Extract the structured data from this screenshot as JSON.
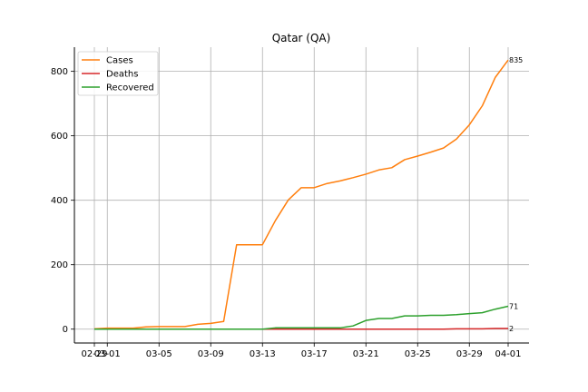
{
  "chart_data": {
    "type": "line",
    "title": "Qatar (QA)",
    "xlabel": "",
    "ylabel": "",
    "grid": true,
    "legend_position": "top-left",
    "x_tick_labels": [
      "02-29",
      "03-01",
      "03-05",
      "03-09",
      "03-13",
      "03-17",
      "03-21",
      "03-25",
      "03-29",
      "04-01"
    ],
    "y_ticks": [
      0,
      200,
      400,
      600,
      800
    ],
    "ylim": [
      -43,
      875
    ],
    "x": [
      "02-29",
      "03-01",
      "03-02",
      "03-03",
      "03-04",
      "03-05",
      "03-06",
      "03-07",
      "03-08",
      "03-09",
      "03-10",
      "03-11",
      "03-12",
      "03-13",
      "03-14",
      "03-15",
      "03-16",
      "03-17",
      "03-18",
      "03-19",
      "03-20",
      "03-21",
      "03-22",
      "03-23",
      "03-24",
      "03-25",
      "03-26",
      "03-27",
      "03-28",
      "03-29",
      "03-30",
      "03-31",
      "04-01"
    ],
    "series": [
      {
        "name": "Cases",
        "color": "#ff7f0e",
        "values": [
          1,
          3,
          3,
          3,
          7,
          8,
          8,
          8,
          15,
          18,
          24,
          262,
          262,
          262,
          337,
          401,
          439,
          439,
          452,
          460,
          470,
          481,
          494,
          501,
          526,
          537,
          549,
          562,
          590,
          634,
          693,
          781,
          835
        ],
        "end_label": "835"
      },
      {
        "name": "Deaths",
        "color": "#d62728",
        "values": [
          0,
          0,
          0,
          0,
          0,
          0,
          0,
          0,
          0,
          0,
          0,
          0,
          0,
          0,
          0,
          0,
          0,
          0,
          0,
          0,
          0,
          0,
          0,
          0,
          0,
          0,
          0,
          0,
          1,
          1,
          1,
          2,
          2
        ],
        "end_label": "2"
      },
      {
        "name": "Recovered",
        "color": "#2ca02c",
        "values": [
          0,
          0,
          0,
          0,
          0,
          0,
          0,
          0,
          0,
          0,
          0,
          0,
          0,
          0,
          4,
          4,
          4,
          4,
          4,
          4,
          10,
          27,
          33,
          33,
          41,
          41,
          43,
          43,
          45,
          48,
          51,
          62,
          71
        ],
        "end_label": "71"
      }
    ]
  }
}
